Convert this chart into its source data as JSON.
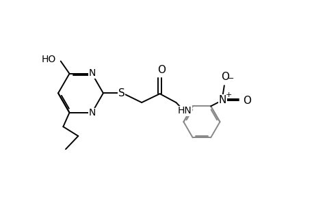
{
  "bg_color": "#ffffff",
  "line_color": "#000000",
  "gray_color": "#888888",
  "font_size": 9,
  "line_width": 1.4,
  "fig_width": 4.6,
  "fig_height": 3.0,
  "dpi": 100,
  "xlim": [
    0,
    10
  ],
  "ylim": [
    0,
    6.5
  ]
}
